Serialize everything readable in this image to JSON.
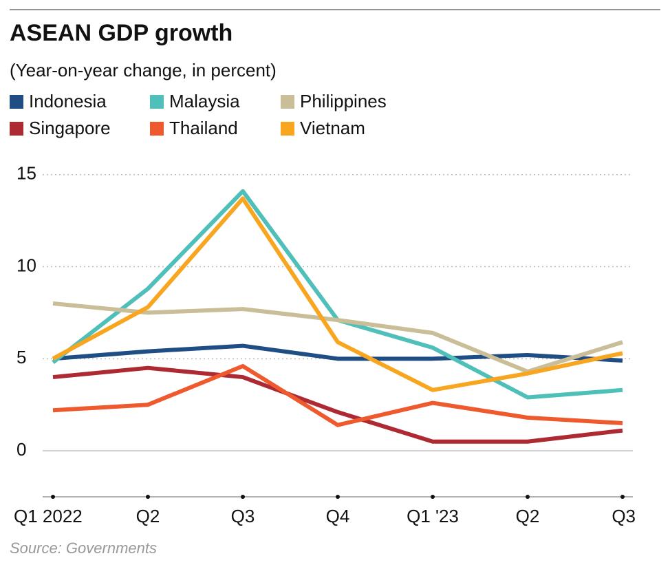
{
  "chart_data": {
    "type": "line",
    "title": "ASEAN GDP growth",
    "subtitle": "(Year-on-year change, in percent)",
    "source": "Source: Governments",
    "categories": [
      "Q1 2022",
      "Q2",
      "Q3",
      "Q4",
      "Q1 '23",
      "Q2",
      "Q3"
    ],
    "series": [
      {
        "name": "Indonesia",
        "color": "#1f4e85",
        "values": [
          5.0,
          5.4,
          5.7,
          5.0,
          5.0,
          5.2,
          4.9
        ]
      },
      {
        "name": "Malaysia",
        "color": "#4fbfba",
        "values": [
          4.8,
          8.8,
          14.1,
          7.1,
          5.6,
          2.9,
          3.3
        ]
      },
      {
        "name": "Philippines",
        "color": "#c9be98",
        "values": [
          8.0,
          7.5,
          7.7,
          7.1,
          6.4,
          4.3,
          5.9
        ]
      },
      {
        "name": "Singapore",
        "color": "#ad2a33",
        "values": [
          4.0,
          4.5,
          4.0,
          2.1,
          0.5,
          0.5,
          1.1
        ]
      },
      {
        "name": "Thailand",
        "color": "#ee5a2e",
        "values": [
          2.2,
          2.5,
          4.6,
          1.4,
          2.6,
          1.8,
          1.5
        ]
      },
      {
        "name": "Vietnam",
        "color": "#f8a51f",
        "values": [
          5.0,
          7.8,
          13.7,
          5.9,
          3.3,
          4.2,
          5.3
        ]
      }
    ],
    "ylim": [
      -2.5,
      15.7
    ],
    "yticks": [
      0,
      5,
      10,
      15
    ],
    "grid": true
  }
}
